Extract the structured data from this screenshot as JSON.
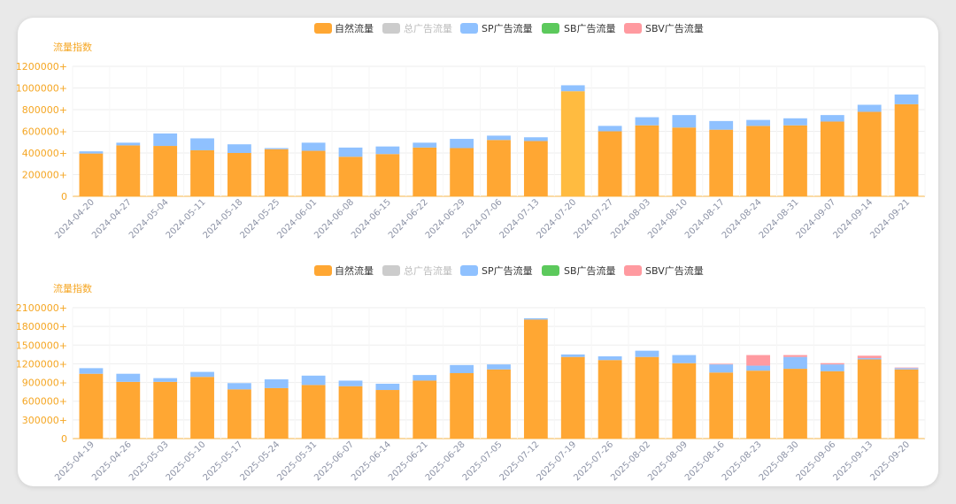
{
  "chart_data": [
    {
      "type": "bar",
      "stacked": true,
      "ylabel": "流量指数",
      "ylim": [
        0,
        1200000
      ],
      "yticks": [
        "0",
        "200000+",
        "400000+",
        "600000+",
        "800000+",
        "1000000+",
        "1200000+"
      ],
      "legend": [
        {
          "name": "自然流量",
          "color": "#ffa733",
          "active": true
        },
        {
          "name": "总广告流量",
          "color": "#cccccc",
          "active": false
        },
        {
          "name": "SP广告流量",
          "color": "#8fc1ff",
          "active": true
        },
        {
          "name": "SB广告流量",
          "color": "#5cc95c",
          "active": true
        },
        {
          "name": "SBV广告流量",
          "color": "#ff9aa0",
          "active": true
        }
      ],
      "categories": [
        "2024-04-20",
        "2024-04-27",
        "2024-05-04",
        "2024-05-11",
        "2024-05-18",
        "2024-05-25",
        "2024-06-01",
        "2024-06-08",
        "2024-06-15",
        "2024-06-22",
        "2024-06-29",
        "2024-07-06",
        "2024-07-13",
        "2024-07-20",
        "2024-07-27",
        "2024-08-03",
        "2024-08-10",
        "2024-08-17",
        "2024-08-24",
        "2024-08-31",
        "2024-09-07",
        "2024-09-14",
        "2024-09-21"
      ],
      "series": [
        {
          "name": "自然流量",
          "color": "#ffa733",
          "values": [
            395000,
            470000,
            465000,
            425000,
            400000,
            435000,
            420000,
            365000,
            390000,
            450000,
            445000,
            520000,
            510000,
            970000,
            600000,
            655000,
            635000,
            615000,
            650000,
            655000,
            690000,
            780000,
            850000
          ]
        },
        {
          "name": "SP广告流量",
          "color": "#8fc1ff",
          "values": [
            20000,
            25000,
            115000,
            110000,
            80000,
            10000,
            75000,
            85000,
            70000,
            45000,
            85000,
            40000,
            35000,
            55000,
            50000,
            75000,
            115000,
            80000,
            55000,
            65000,
            60000,
            65000,
            90000
          ]
        },
        {
          "name": "SB广告流量",
          "color": "#5cc95c",
          "values": [
            0,
            0,
            0,
            0,
            0,
            0,
            0,
            0,
            0,
            0,
            0,
            0,
            0,
            0,
            0,
            0,
            0,
            0,
            0,
            0,
            0,
            0,
            0
          ]
        },
        {
          "name": "SBV广告流量",
          "color": "#ff9aa0",
          "values": [
            0,
            0,
            0,
            0,
            0,
            0,
            0,
            0,
            0,
            0,
            0,
            0,
            0,
            0,
            0,
            0,
            0,
            0,
            0,
            0,
            0,
            0,
            0
          ]
        }
      ],
      "highlight_index": 13,
      "highlight_color": "#ffbb40"
    },
    {
      "type": "bar",
      "stacked": true,
      "ylabel": "流量指数",
      "ylim": [
        0,
        2100000
      ],
      "yticks": [
        "0",
        "300000+",
        "600000+",
        "900000+",
        "1200000+",
        "1500000+",
        "1800000+",
        "2100000+"
      ],
      "legend": [
        {
          "name": "自然流量",
          "color": "#ffa733",
          "active": true
        },
        {
          "name": "总广告流量",
          "color": "#cccccc",
          "active": false
        },
        {
          "name": "SP广告流量",
          "color": "#8fc1ff",
          "active": true
        },
        {
          "name": "SB广告流量",
          "color": "#5cc95c",
          "active": true
        },
        {
          "name": "SBV广告流量",
          "color": "#ff9aa0",
          "active": true
        }
      ],
      "categories": [
        "2025-04-19",
        "2025-04-26",
        "2025-05-03",
        "2025-05-10",
        "2025-05-17",
        "2025-05-24",
        "2025-05-31",
        "2025-06-07",
        "2025-06-14",
        "2025-06-21",
        "2025-06-28",
        "2025-07-05",
        "2025-07-12",
        "2025-07-19",
        "2025-07-26",
        "2025-08-02",
        "2025-08-09",
        "2025-08-16",
        "2025-08-23",
        "2025-08-30",
        "2025-09-06",
        "2025-09-13",
        "2025-09-20"
      ],
      "series": [
        {
          "name": "自然流量",
          "color": "#ffa733",
          "values": [
            1040000,
            910000,
            910000,
            990000,
            790000,
            810000,
            860000,
            840000,
            780000,
            930000,
            1050000,
            1110000,
            1910000,
            1310000,
            1260000,
            1310000,
            1210000,
            1060000,
            1090000,
            1120000,
            1080000,
            1270000,
            1110000
          ]
        },
        {
          "name": "SP广告流量",
          "color": "#8fc1ff",
          "values": [
            90000,
            130000,
            60000,
            80000,
            100000,
            140000,
            150000,
            90000,
            100000,
            90000,
            130000,
            80000,
            20000,
            40000,
            60000,
            100000,
            130000,
            130000,
            80000,
            190000,
            110000,
            20000,
            20000
          ]
        },
        {
          "name": "SB广告流量",
          "color": "#5cc95c",
          "values": [
            0,
            0,
            0,
            0,
            0,
            0,
            0,
            0,
            0,
            0,
            0,
            0,
            0,
            0,
            0,
            0,
            0,
            0,
            0,
            0,
            0,
            0,
            0
          ]
        },
        {
          "name": "SBV广告流量",
          "color": "#ff9aa0",
          "values": [
            0,
            0,
            0,
            0,
            0,
            0,
            0,
            0,
            0,
            0,
            0,
            0,
            0,
            0,
            0,
            0,
            0,
            10000,
            170000,
            30000,
            20000,
            40000,
            10000
          ]
        }
      ]
    }
  ]
}
